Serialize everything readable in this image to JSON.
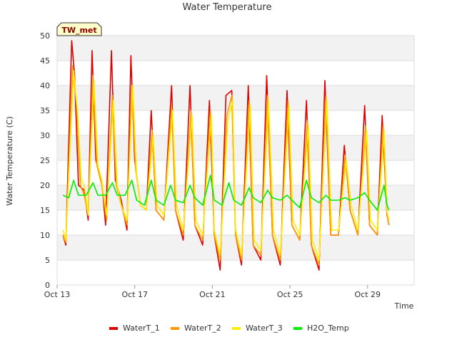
{
  "chart_data": {
    "type": "line",
    "title": "Water Temperature",
    "xlabel": "Time",
    "ylabel": "Water Temperature (C)",
    "station_badge": "TW_met",
    "x_domain": [
      "Oct 13",
      "Oct 31"
    ],
    "ylim": [
      0,
      50
    ],
    "y_ticks": [
      0,
      5,
      10,
      15,
      20,
      25,
      30,
      35,
      40,
      45,
      50
    ],
    "x_ticks": [
      {
        "label": "Oct 13",
        "day": 13
      },
      {
        "label": "Oct 17",
        "day": 17
      },
      {
        "label": "Oct 21",
        "day": 21
      },
      {
        "label": "Oct 25",
        "day": 25
      },
      {
        "label": "Oct 29",
        "day": 29
      }
    ],
    "grid": true,
    "legend_position": "bottom",
    "series": [
      {
        "name": "WaterT_1",
        "color": "#dd0000",
        "points": [
          [
            13.3,
            10
          ],
          [
            13.45,
            8
          ],
          [
            13.75,
            49
          ],
          [
            13.9,
            42
          ],
          [
            14.1,
            20
          ],
          [
            14.4,
            19
          ],
          [
            14.6,
            13
          ],
          [
            14.8,
            47
          ],
          [
            15.0,
            25
          ],
          [
            15.3,
            21
          ],
          [
            15.5,
            12
          ],
          [
            15.8,
            47
          ],
          [
            16.0,
            21
          ],
          [
            16.3,
            17
          ],
          [
            16.6,
            11
          ],
          [
            16.8,
            46
          ],
          [
            17.0,
            25
          ],
          [
            17.3,
            16
          ],
          [
            17.6,
            15
          ],
          [
            17.85,
            35
          ],
          [
            18.1,
            15
          ],
          [
            18.5,
            13
          ],
          [
            18.9,
            40
          ],
          [
            19.1,
            15
          ],
          [
            19.5,
            9
          ],
          [
            19.85,
            40
          ],
          [
            20.1,
            12
          ],
          [
            20.5,
            8
          ],
          [
            20.85,
            37
          ],
          [
            21.1,
            10
          ],
          [
            21.4,
            3
          ],
          [
            21.7,
            38
          ],
          [
            22.0,
            39
          ],
          [
            22.2,
            10
          ],
          [
            22.5,
            4
          ],
          [
            22.85,
            40
          ],
          [
            23.1,
            8
          ],
          [
            23.5,
            5
          ],
          [
            23.8,
            42
          ],
          [
            24.1,
            10
          ],
          [
            24.5,
            4
          ],
          [
            24.85,
            39
          ],
          [
            25.1,
            12
          ],
          [
            25.5,
            9
          ],
          [
            25.85,
            37
          ],
          [
            26.1,
            8
          ],
          [
            26.5,
            3
          ],
          [
            26.8,
            41
          ],
          [
            27.1,
            10
          ],
          [
            27.5,
            10
          ],
          [
            27.8,
            28
          ],
          [
            28.1,
            15
          ],
          [
            28.5,
            10
          ],
          [
            28.85,
            36
          ],
          [
            29.1,
            12
          ],
          [
            29.5,
            10
          ],
          [
            29.75,
            34
          ],
          [
            30.0,
            14
          ],
          [
            30.1,
            12
          ]
        ]
      },
      {
        "name": "WaterT_2",
        "color": "#ff9900",
        "points": [
          [
            13.3,
            10
          ],
          [
            13.45,
            8.5
          ],
          [
            13.8,
            44
          ],
          [
            14.0,
            36
          ],
          [
            14.2,
            20
          ],
          [
            14.4,
            18
          ],
          [
            14.6,
            14
          ],
          [
            14.85,
            42
          ],
          [
            15.05,
            24
          ],
          [
            15.3,
            20
          ],
          [
            15.55,
            13
          ],
          [
            15.85,
            38
          ],
          [
            16.05,
            20
          ],
          [
            16.3,
            16
          ],
          [
            16.6,
            12
          ],
          [
            16.85,
            40
          ],
          [
            17.05,
            23
          ],
          [
            17.3,
            16
          ],
          [
            17.6,
            15
          ],
          [
            17.9,
            31
          ],
          [
            18.1,
            15
          ],
          [
            18.5,
            13
          ],
          [
            18.9,
            36
          ],
          [
            19.1,
            15
          ],
          [
            19.5,
            10
          ],
          [
            19.9,
            35
          ],
          [
            20.1,
            12
          ],
          [
            20.5,
            9
          ],
          [
            20.9,
            35
          ],
          [
            21.1,
            10
          ],
          [
            21.4,
            5
          ],
          [
            21.75,
            34
          ],
          [
            22.0,
            38
          ],
          [
            22.2,
            10
          ],
          [
            22.5,
            5
          ],
          [
            22.9,
            37
          ],
          [
            23.1,
            8
          ],
          [
            23.5,
            6
          ],
          [
            23.85,
            38
          ],
          [
            24.1,
            10
          ],
          [
            24.5,
            5
          ],
          [
            24.9,
            37
          ],
          [
            25.1,
            12
          ],
          [
            25.5,
            9
          ],
          [
            25.9,
            33
          ],
          [
            26.1,
            8
          ],
          [
            26.5,
            4
          ],
          [
            26.85,
            38
          ],
          [
            27.1,
            10
          ],
          [
            27.5,
            10
          ],
          [
            27.85,
            26
          ],
          [
            28.1,
            15
          ],
          [
            28.5,
            10
          ],
          [
            28.9,
            32
          ],
          [
            29.1,
            12
          ],
          [
            29.5,
            10
          ],
          [
            29.8,
            32
          ],
          [
            30.0,
            14
          ],
          [
            30.1,
            12
          ]
        ]
      },
      {
        "name": "WaterT_3",
        "color": "#ffee00",
        "points": [
          [
            13.3,
            11
          ],
          [
            13.45,
            9
          ],
          [
            13.85,
            43
          ],
          [
            14.05,
            35
          ],
          [
            14.25,
            21
          ],
          [
            14.4,
            20
          ],
          [
            14.6,
            14
          ],
          [
            14.9,
            41
          ],
          [
            15.1,
            24
          ],
          [
            15.3,
            21
          ],
          [
            15.55,
            14
          ],
          [
            15.9,
            37
          ],
          [
            16.1,
            20
          ],
          [
            16.3,
            16
          ],
          [
            16.6,
            13
          ],
          [
            16.9,
            40
          ],
          [
            17.1,
            22
          ],
          [
            17.3,
            16
          ],
          [
            17.6,
            15
          ],
          [
            17.95,
            30
          ],
          [
            18.15,
            16
          ],
          [
            18.5,
            14
          ],
          [
            18.95,
            35
          ],
          [
            19.15,
            16
          ],
          [
            19.5,
            11
          ],
          [
            19.95,
            34
          ],
          [
            20.15,
            13
          ],
          [
            20.5,
            10
          ],
          [
            20.95,
            34
          ],
          [
            21.1,
            11
          ],
          [
            21.4,
            6
          ],
          [
            21.8,
            33
          ],
          [
            22.05,
            37
          ],
          [
            22.2,
            11
          ],
          [
            22.5,
            6
          ],
          [
            22.95,
            36
          ],
          [
            23.15,
            9
          ],
          [
            23.5,
            7
          ],
          [
            23.9,
            37
          ],
          [
            24.15,
            11
          ],
          [
            24.5,
            6
          ],
          [
            24.95,
            36
          ],
          [
            25.15,
            13
          ],
          [
            25.5,
            10
          ],
          [
            25.95,
            32
          ],
          [
            26.15,
            9
          ],
          [
            26.5,
            5
          ],
          [
            26.9,
            37
          ],
          [
            27.15,
            11
          ],
          [
            27.5,
            11
          ],
          [
            27.9,
            25
          ],
          [
            28.15,
            16
          ],
          [
            28.5,
            11
          ],
          [
            28.95,
            31
          ],
          [
            29.15,
            13
          ],
          [
            29.5,
            11
          ],
          [
            29.85,
            31
          ],
          [
            30.0,
            15
          ],
          [
            30.1,
            13
          ]
        ]
      },
      {
        "name": "H2O_Temp",
        "color": "#00ee00",
        "points": [
          [
            13.3,
            18
          ],
          [
            13.6,
            17.5
          ],
          [
            13.85,
            21
          ],
          [
            14.1,
            18
          ],
          [
            14.5,
            18
          ],
          [
            14.85,
            20.5
          ],
          [
            15.1,
            18
          ],
          [
            15.5,
            18
          ],
          [
            15.85,
            20.5
          ],
          [
            16.1,
            18
          ],
          [
            16.5,
            18
          ],
          [
            16.85,
            21
          ],
          [
            17.1,
            17
          ],
          [
            17.5,
            16
          ],
          [
            17.85,
            21
          ],
          [
            18.1,
            17
          ],
          [
            18.5,
            16
          ],
          [
            18.85,
            20
          ],
          [
            19.1,
            17
          ],
          [
            19.5,
            16.5
          ],
          [
            19.85,
            20
          ],
          [
            20.1,
            17.5
          ],
          [
            20.5,
            16
          ],
          [
            20.9,
            22
          ],
          [
            21.1,
            17
          ],
          [
            21.5,
            16
          ],
          [
            21.85,
            20.5
          ],
          [
            22.1,
            17
          ],
          [
            22.5,
            16
          ],
          [
            22.9,
            19.5
          ],
          [
            23.1,
            17.5
          ],
          [
            23.5,
            16.5
          ],
          [
            23.85,
            19
          ],
          [
            24.1,
            17.5
          ],
          [
            24.5,
            17
          ],
          [
            24.85,
            18
          ],
          [
            25.1,
            17
          ],
          [
            25.5,
            15.5
          ],
          [
            25.85,
            21
          ],
          [
            26.1,
            17.5
          ],
          [
            26.5,
            16.5
          ],
          [
            26.85,
            18
          ],
          [
            27.1,
            17
          ],
          [
            27.5,
            17
          ],
          [
            27.85,
            17.5
          ],
          [
            28.1,
            17
          ],
          [
            28.5,
            17.5
          ],
          [
            28.85,
            18.5
          ],
          [
            29.1,
            17
          ],
          [
            29.5,
            15
          ],
          [
            29.85,
            20
          ],
          [
            30.0,
            16
          ],
          [
            30.1,
            15
          ]
        ]
      }
    ]
  }
}
